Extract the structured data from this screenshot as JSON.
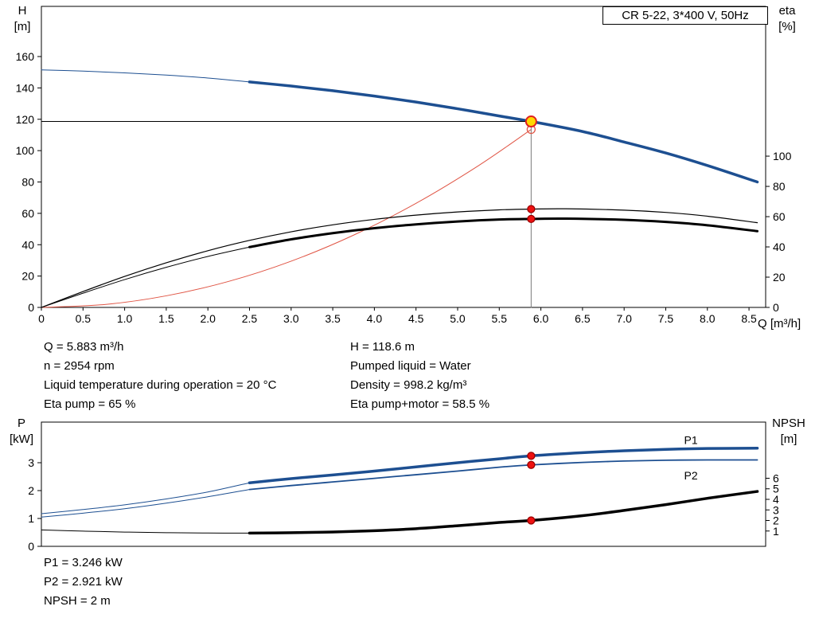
{
  "title_box": "CR 5-22, 3*400 V, 50Hz",
  "labels": {
    "h_axis": [
      "H",
      "[m]"
    ],
    "eta_axis": [
      "eta",
      "[%]"
    ],
    "p_axis": [
      "P",
      "[kW]"
    ],
    "npsh_axis": [
      "NPSH",
      "[m]"
    ],
    "q_axis": "Q [m³/h]"
  },
  "info": {
    "left": [
      "Q = 5.883 m³/h",
      "n = 2954 rpm",
      "Liquid temperature during operation = 20 °C",
      "Eta pump = 65 %"
    ],
    "right": [
      "H = 118.6 m",
      "Pumped liquid = Water",
      "Density = 998.2 kg/m³",
      "Eta pump+motor = 58.5 %"
    ]
  },
  "footer": [
    "P1 = 3.246 kW",
    "P2 = 2.921 kW",
    "NPSH = 2 m"
  ],
  "duty_point": {
    "q": 5.883,
    "h": 118.6,
    "eta_pump": 65,
    "eta_pump_motor": 58.5,
    "p1": 3.246,
    "p2": 2.921,
    "npsh": 2
  },
  "colors": {
    "curve_blue": "#1d4f91",
    "curve_black": "#000000",
    "system_red": "#e05545",
    "marker_red": "#ee1111",
    "marker_red_edge": "#990000",
    "duty_yellow": "#ffd800",
    "duty_ring": "#e02020",
    "guide_gray": "#7a7a7a",
    "frame": "#000000"
  },
  "chart_data": [
    {
      "id": "head-eta-chart",
      "type": "line",
      "title": "CR 5-22, 3*400 V, 50Hz",
      "xlabel": "Q [m³/h]",
      "ylabel_left": "H [m]",
      "ylabel_right": "eta [%]",
      "grid": false,
      "x": {
        "lim": [
          0,
          8.7
        ],
        "tick_values": [
          0,
          0.5,
          1,
          1.5,
          2,
          2.5,
          3,
          3.5,
          4,
          4.5,
          5,
          5.5,
          6,
          6.5,
          7,
          7.5,
          8,
          8.5
        ],
        "tick_labels": [
          "0",
          "0.5",
          "1.0",
          "1.5",
          "2.0",
          "2.5",
          "3.0",
          "3.5",
          "4.0",
          "4.5",
          "5.0",
          "5.5",
          "6.0",
          "6.5",
          "7.0",
          "7.5",
          "8.0",
          "8.5"
        ]
      },
      "left": {
        "lim": [
          0,
          192
        ],
        "tick_values": [
          0,
          20,
          40,
          60,
          80,
          100,
          120,
          140,
          160
        ],
        "tick_labels": [
          "0",
          "20",
          "40",
          "60",
          "80",
          "100",
          "120",
          "140",
          "160"
        ]
      },
      "right": {
        "lim": [
          0,
          199
        ],
        "tick_values": [
          0,
          20,
          40,
          60,
          80,
          100
        ],
        "tick_labels": [
          "0",
          "20",
          "40",
          "60",
          "80",
          "100"
        ]
      },
      "series": [
        {
          "name": "head-curve-thin",
          "axis": "left",
          "color": "curve_blue",
          "width": 1,
          "points": [
            [
              0,
              151.5
            ],
            [
              0.5,
              150.7
            ],
            [
              1,
              149.6
            ],
            [
              1.5,
              148.2
            ],
            [
              2,
              146.3
            ],
            [
              2.5,
              143.8
            ]
          ]
        },
        {
          "name": "head-curve",
          "axis": "left",
          "color": "curve_blue",
          "width": 3.5,
          "points": [
            [
              2.5,
              143.8
            ],
            [
              3,
              141.2
            ],
            [
              3.5,
              138.2
            ],
            [
              4,
              134.8
            ],
            [
              4.5,
              131
            ],
            [
              5,
              126.7
            ],
            [
              5.5,
              122.1
            ],
            [
              5.883,
              118.6
            ],
            [
              6.5,
              112.2
            ],
            [
              7,
              105.5
            ],
            [
              7.5,
              98.5
            ],
            [
              8,
              90.5
            ],
            [
              8.6,
              80
            ]
          ]
        },
        {
          "name": "system-curve",
          "axis": "left",
          "color": "system_red",
          "width": 1,
          "points": [
            [
              0,
              0
            ],
            [
              0.75,
              1.8
            ],
            [
              1.5,
              7.4
            ],
            [
              2.25,
              16.6
            ],
            [
              3,
              29.5
            ],
            [
              3.75,
              46.1
            ],
            [
              4.5,
              66.4
            ],
            [
              5.25,
              90.4
            ],
            [
              5.883,
              113.5
            ]
          ]
        },
        {
          "name": "eta-pump-curve",
          "axis": "right",
          "color": "curve_black",
          "width": 1.2,
          "points": [
            [
              0,
              0
            ],
            [
              0.5,
              10.5
            ],
            [
              1,
              20.5
            ],
            [
              1.5,
              29.5
            ],
            [
              2,
              37.5
            ],
            [
              2.5,
              44.3
            ],
            [
              3,
              50
            ],
            [
              3.5,
              54.6
            ],
            [
              4,
              58.2
            ],
            [
              4.5,
              61
            ],
            [
              5,
              63.1
            ],
            [
              5.5,
              64.5
            ],
            [
              5.883,
              65
            ],
            [
              6.3,
              65.2
            ],
            [
              7,
              64.3
            ],
            [
              7.5,
              62.8
            ],
            [
              8,
              60.3
            ],
            [
              8.6,
              56
            ]
          ]
        },
        {
          "name": "eta-pump-motor-curve-thin",
          "axis": "right",
          "color": "curve_black",
          "width": 1,
          "points": [
            [
              0,
              0
            ],
            [
              0.5,
              9.4
            ],
            [
              1,
              18.4
            ],
            [
              1.5,
              26.5
            ],
            [
              2,
              33.7
            ],
            [
              2.5,
              39.9
            ]
          ]
        },
        {
          "name": "eta-pump-motor-curve",
          "axis": "right",
          "color": "curve_black",
          "width": 3,
          "points": [
            [
              2.5,
              39.9
            ],
            [
              3,
              45
            ],
            [
              3.5,
              49.1
            ],
            [
              4,
              52.4
            ],
            [
              4.5,
              54.9
            ],
            [
              5,
              56.8
            ],
            [
              5.5,
              58.1
            ],
            [
              5.883,
              58.5
            ],
            [
              6.3,
              58.7
            ],
            [
              7,
              57.9
            ],
            [
              7.5,
              56.5
            ],
            [
              8,
              54.3
            ],
            [
              8.6,
              50.4
            ]
          ]
        }
      ],
      "guides": [
        {
          "name": "duty-head-hline",
          "axis": "left",
          "color": "curve_black",
          "width": 1,
          "points": [
            [
              0,
              118.6
            ],
            [
              5.883,
              118.6
            ]
          ]
        },
        {
          "name": "duty-vline",
          "axis": "left",
          "color": "guide_gray",
          "width": 1,
          "points": [
            [
              5.883,
              0
            ],
            [
              5.883,
              118.6
            ]
          ]
        }
      ],
      "markers": [
        {
          "name": "system-curve-end-marker",
          "axis": "left",
          "x": 5.883,
          "y": 113.5,
          "r": 5,
          "fill": "none",
          "stroke": "system_red",
          "interactable": false
        },
        {
          "name": "eta-pump-duty-marker",
          "axis": "right",
          "x": 5.883,
          "y": 65,
          "r": 4.5,
          "fill": "marker_red",
          "stroke": "marker_red_edge",
          "interactable": false
        },
        {
          "name": "eta-pump-motor-duty-marker",
          "axis": "right",
          "x": 5.883,
          "y": 58.5,
          "r": 4.5,
          "fill": "marker_red",
          "stroke": "marker_red_edge",
          "interactable": false
        },
        {
          "name": "duty-point-marker",
          "axis": "left",
          "x": 5.883,
          "y": 118.6,
          "r": 6.5,
          "fill": "duty_yellow",
          "stroke": "duty_ring",
          "stroke_width": 2,
          "interactable": true
        }
      ],
      "series_labels": []
    },
    {
      "id": "power-npsh-chart",
      "type": "line",
      "xlabel": "Q [m³/h]",
      "ylabel_left": "P [kW]",
      "ylabel_right": "NPSH [m]",
      "grid": false,
      "x": {
        "lim": [
          0,
          8.7
        ],
        "tick_values": [],
        "tick_labels": []
      },
      "left": {
        "lim": [
          0,
          4.457
        ],
        "tick_values": [
          0,
          1,
          2,
          3
        ],
        "tick_labels": [
          "0",
          "1",
          "2",
          "3"
        ]
      },
      "right": {
        "lim": [
          -0.453,
          11.32
        ],
        "tick_values": [
          1,
          2,
          3,
          4,
          5,
          6
        ],
        "tick_labels": [
          "1",
          "2",
          "3",
          "4",
          "5",
          "6"
        ]
      },
      "series": [
        {
          "name": "p1-curve-thin",
          "axis": "left",
          "color": "curve_blue",
          "width": 1,
          "points": [
            [
              0,
              1.17
            ],
            [
              0.5,
              1.32
            ],
            [
              1,
              1.49
            ],
            [
              1.5,
              1.7
            ],
            [
              2,
              1.95
            ],
            [
              2.5,
              2.28
            ]
          ]
        },
        {
          "name": "p1-curve",
          "axis": "left",
          "color": "curve_blue",
          "width": 3.5,
          "points": [
            [
              2.5,
              2.28
            ],
            [
              3,
              2.43
            ],
            [
              3.5,
              2.56
            ],
            [
              4,
              2.7
            ],
            [
              4.5,
              2.85
            ],
            [
              5,
              3.0
            ],
            [
              5.5,
              3.14
            ],
            [
              5.883,
              3.246
            ],
            [
              6.5,
              3.36
            ],
            [
              7,
              3.43
            ],
            [
              7.5,
              3.48
            ],
            [
              8,
              3.51
            ],
            [
              8.6,
              3.52
            ]
          ]
        },
        {
          "name": "p2-curve-thin",
          "axis": "left",
          "color": "curve_blue",
          "width": 1,
          "points": [
            [
              0,
              1.05
            ],
            [
              0.5,
              1.19
            ],
            [
              1,
              1.35
            ],
            [
              1.5,
              1.55
            ],
            [
              2,
              1.78
            ],
            [
              2.5,
              2.04
            ]
          ]
        },
        {
          "name": "p2-curve",
          "axis": "left",
          "color": "curve_blue",
          "width": 1.8,
          "points": [
            [
              2.5,
              2.04
            ],
            [
              3,
              2.18
            ],
            [
              3.5,
              2.31
            ],
            [
              4,
              2.44
            ],
            [
              4.5,
              2.57
            ],
            [
              5,
              2.7
            ],
            [
              5.5,
              2.84
            ],
            [
              5.883,
              2.921
            ],
            [
              6.5,
              3.01
            ],
            [
              7,
              3.06
            ],
            [
              7.5,
              3.09
            ],
            [
              8,
              3.1
            ],
            [
              8.6,
              3.1
            ]
          ]
        },
        {
          "name": "npsh-curve-thin",
          "axis": "right",
          "color": "curve_black",
          "width": 1,
          "points": [
            [
              0,
              1.1
            ],
            [
              0.5,
              0.99
            ],
            [
              1,
              0.9
            ],
            [
              1.5,
              0.84
            ],
            [
              2,
              0.81
            ],
            [
              2.5,
              0.8
            ]
          ]
        },
        {
          "name": "npsh-curve",
          "axis": "right",
          "color": "curve_black",
          "width": 3.5,
          "points": [
            [
              2.5,
              0.8
            ],
            [
              3,
              0.84
            ],
            [
              3.5,
              0.91
            ],
            [
              4,
              1.03
            ],
            [
              4.5,
              1.22
            ],
            [
              5,
              1.5
            ],
            [
              5.5,
              1.81
            ],
            [
              5.883,
              2.0
            ],
            [
              6.5,
              2.45
            ],
            [
              7,
              2.95
            ],
            [
              7.5,
              3.5
            ],
            [
              8,
              4.1
            ],
            [
              8.6,
              4.75
            ]
          ]
        }
      ],
      "guides": [],
      "markers": [
        {
          "name": "p1-duty-marker",
          "axis": "left",
          "x": 5.883,
          "y": 3.246,
          "r": 4.5,
          "fill": "marker_red",
          "stroke": "marker_red_edge",
          "interactable": false
        },
        {
          "name": "p2-duty-marker",
          "axis": "left",
          "x": 5.883,
          "y": 2.921,
          "r": 4.5,
          "fill": "marker_red",
          "stroke": "marker_red_edge",
          "interactable": false
        },
        {
          "name": "npsh-duty-marker",
          "axis": "right",
          "x": 5.883,
          "y": 2.0,
          "r": 4.5,
          "fill": "marker_red",
          "stroke": "marker_red_edge",
          "interactable": false
        }
      ],
      "series_labels": [
        {
          "name": "p1-curve-label",
          "text": "P1",
          "axis": "left",
          "x": 7.72,
          "y": 3.82,
          "color": "curve_blue"
        },
        {
          "name": "p2-curve-label",
          "text": "P2",
          "axis": "left",
          "x": 7.72,
          "y": 2.55,
          "color": "curve_blue"
        }
      ]
    }
  ]
}
